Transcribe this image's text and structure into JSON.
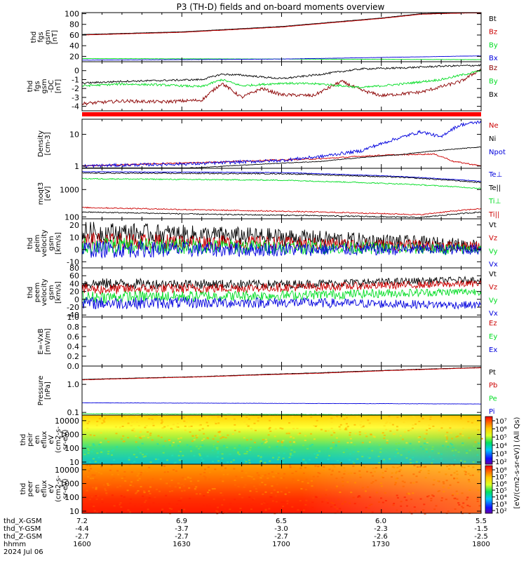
{
  "title": "P3 (TH-D) fields and on-board moments overview",
  "colors": {
    "black": "#000000",
    "red": "#cc0000",
    "green": "#00dd22",
    "blue": "#0000dd",
    "darkred": "#8b0000"
  },
  "chart_data": [
    {
      "type": "line",
      "ylabel": [
        "thd",
        "fgs",
        "gsm",
        "[nT]"
      ],
      "ytick_labels": [
        "100",
        "80",
        "60",
        "40",
        "20"
      ],
      "ytick_values": [
        100,
        80,
        60,
        40,
        20
      ],
      "ylim": [
        10,
        102
      ],
      "series": [
        {
          "name": "Bt",
          "color": "black",
          "x": [
            0,
            0.25,
            0.5,
            0.75,
            0.85,
            1
          ],
          "y": [
            61,
            66,
            76,
            92,
            100,
            103
          ]
        },
        {
          "name": "Bz",
          "color": "red",
          "x": [
            0,
            0.25,
            0.5,
            0.75,
            0.85,
            1
          ],
          "y": [
            60,
            65,
            75,
            91,
            99,
            102
          ]
        },
        {
          "name": "By",
          "color": "green",
          "x": [
            0,
            0.5,
            1
          ],
          "y": [
            16,
            15,
            14
          ]
        },
        {
          "name": "Bx",
          "color": "blue",
          "x": [
            0,
            0.5,
            1
          ],
          "y": [
            13,
            15,
            21
          ]
        }
      ]
    },
    {
      "type": "line",
      "ylabel": [
        "thd",
        "fgs",
        "gsm",
        "-DC",
        "[nT]"
      ],
      "ytick_labels": [
        "0",
        "-1",
        "-2",
        "-3",
        "-4"
      ],
      "ytick_values": [
        0,
        -1,
        -2,
        -3,
        -4
      ],
      "ylim": [
        -4.5,
        1.0
      ],
      "series": [
        {
          "name": "Bz",
          "color": "darkred",
          "x": [
            0,
            0.1,
            0.2,
            0.3,
            0.35,
            0.4,
            0.45,
            0.5,
            0.58,
            0.65,
            0.7,
            0.75,
            0.8,
            0.85,
            0.9,
            0.95,
            1
          ],
          "y": [
            -3.7,
            -3.4,
            -3.5,
            -3.3,
            -1.4,
            -3.0,
            -2.0,
            -2.7,
            -2.8,
            -1.2,
            -2.2,
            -2.8,
            -2.6,
            -2.4,
            -1.8,
            -1.2,
            0.2
          ]
        },
        {
          "name": "By",
          "color": "green",
          "x": [
            0,
            0.1,
            0.2,
            0.3,
            0.35,
            0.4,
            0.5,
            0.6,
            0.7,
            0.8,
            0.9,
            1
          ],
          "y": [
            -1.7,
            -1.5,
            -1.6,
            -1.8,
            -1.0,
            -1.7,
            -1.4,
            -1.5,
            -1.9,
            -1.5,
            -1.0,
            0.0
          ]
        },
        {
          "name": "Bx",
          "color": "black",
          "x": [
            0,
            0.1,
            0.2,
            0.3,
            0.35,
            0.4,
            0.5,
            0.6,
            0.7,
            0.8,
            0.9,
            1
          ],
          "y": [
            -1.4,
            -1.2,
            -1.1,
            -1.0,
            -0.4,
            -0.5,
            -0.9,
            -0.4,
            0.2,
            0.3,
            0.5,
            0.6
          ]
        }
      ]
    },
    {
      "type": "line",
      "ylabel": [
        "Density",
        "[cm-3]"
      ],
      "ytick_labels": [
        "10",
        "1"
      ],
      "ytick_values": [
        10,
        1
      ],
      "ylim": [
        0.85,
        30
      ],
      "log": true,
      "series": [
        {
          "name": "Ne",
          "color": "red",
          "x": [
            0,
            0.3,
            0.6,
            0.75,
            0.88,
            0.93,
            1
          ],
          "y": [
            1.0,
            1.3,
            1.7,
            2.2,
            2.4,
            1.4,
            1.0
          ]
        },
        {
          "name": "Ni",
          "color": "black",
          "x": [
            0,
            0.3,
            0.6,
            0.8,
            1
          ],
          "y": [
            0.7,
            0.9,
            1.4,
            2.3,
            4.0
          ]
        },
        {
          "name": "Npot",
          "color": "blue",
          "x": [
            0,
            0.3,
            0.5,
            0.6,
            0.7,
            0.75,
            0.8,
            0.85,
            0.9,
            0.95,
            1
          ],
          "y": [
            1.0,
            1.2,
            1.5,
            2.0,
            3.0,
            5.0,
            8.0,
            12.0,
            8.0,
            20.0,
            25.0
          ]
        }
      ]
    },
    {
      "type": "line",
      "ylabel": [
        "moqt3",
        "[eV]"
      ],
      "ytick_labels": [
        "1000",
        "100"
      ],
      "ytick_values": [
        1000,
        100
      ],
      "ylim": [
        85,
        6000
      ],
      "log": true,
      "series": [
        {
          "name": "Te⊥",
          "color": "blue",
          "x": [
            0,
            0.5,
            0.8,
            1
          ],
          "y": [
            4500,
            4200,
            3000,
            2000
          ]
        },
        {
          "name": "Te||",
          "color": "black",
          "x": [
            0,
            0.5,
            0.8,
            1
          ],
          "y": [
            4000,
            3800,
            2800,
            1800
          ]
        },
        {
          "name": "Ti⊥",
          "color": "green",
          "x": [
            0,
            0.5,
            0.8,
            1
          ],
          "y": [
            2500,
            2200,
            1600,
            1100
          ]
        },
        {
          "name": "Ti||",
          "color": "red",
          "x": [
            0,
            0.3,
            0.6,
            0.85,
            1
          ],
          "y": [
            220,
            180,
            150,
            120,
            200
          ]
        },
        {
          "name": "",
          "color": "black",
          "x": [
            0,
            0.3,
            0.6,
            0.85,
            1
          ],
          "y": [
            150,
            125,
            110,
            95,
            150
          ]
        }
      ]
    },
    {
      "type": "line",
      "ylabel": [
        "thd",
        "peim",
        "velocity",
        "gsm",
        "[km/s]"
      ],
      "ytick_labels": [
        "20",
        "10",
        "0",
        "-10"
      ],
      "ytick_values": [
        20,
        10,
        0,
        -10
      ],
      "ylim": [
        -15,
        25
      ],
      "series": [
        {
          "name": "Vt",
          "color": "black",
          "x": [
            0,
            0.5,
            1
          ],
          "y": [
            14,
            10,
            3
          ]
        },
        {
          "name": "Vz",
          "color": "red",
          "x": [
            0,
            0.5,
            1
          ],
          "y": [
            7,
            5,
            2
          ]
        },
        {
          "name": "Vy",
          "color": "green",
          "x": [
            0,
            0.5,
            1
          ],
          "y": [
            3,
            2,
            0
          ]
        },
        {
          "name": "Vx",
          "color": "blue",
          "x": [
            0,
            0.5,
            1
          ],
          "y": [
            0,
            0,
            0
          ]
        }
      ]
    },
    {
      "type": "line",
      "ylabel": [
        "thd",
        "peem",
        "velocity",
        "gsm",
        "[km/s]"
      ],
      "ytick_labels": [
        "80",
        "60",
        "40",
        "20",
        "0",
        "-20",
        "-40"
      ],
      "ytick_values": [
        80,
        60,
        40,
        20,
        0,
        -20,
        -40
      ],
      "ylim": [
        -45,
        80
      ],
      "series": [
        {
          "name": "Vt",
          "color": "black",
          "x": [
            0,
            0.5,
            1
          ],
          "y": [
            40,
            38,
            50
          ]
        },
        {
          "name": "Vz",
          "color": "red",
          "x": [
            0,
            0.5,
            1
          ],
          "y": [
            25,
            30,
            40
          ]
        },
        {
          "name": "Vy",
          "color": "green",
          "x": [
            0,
            0.5,
            1
          ],
          "y": [
            5,
            10,
            20
          ]
        },
        {
          "name": "Vx",
          "color": "blue",
          "x": [
            0,
            0.5,
            1
          ],
          "y": [
            -10,
            -8,
            -15
          ]
        }
      ]
    },
    {
      "type": "line",
      "ylabel": [
        "E=-VxB",
        "[mV/m]"
      ],
      "ytick_labels": [
        "1.0",
        "0.8",
        "0.6",
        "0.4",
        "0.2",
        "0.0"
      ],
      "ytick_values": [
        1.0,
        0.8,
        0.6,
        0.4,
        0.2,
        0.0
      ],
      "ylim": [
        0,
        1
      ],
      "series": [
        {
          "name": "Ez",
          "color": "red",
          "x": [],
          "y": []
        },
        {
          "name": "Ey",
          "color": "green",
          "x": [],
          "y": []
        },
        {
          "name": "Ex",
          "color": "blue",
          "x": [],
          "y": []
        }
      ]
    },
    {
      "type": "line",
      "ylabel": [
        "Pressure",
        "[nPa]"
      ],
      "ytick_labels": [
        "1.0",
        "0.1"
      ],
      "ytick_values": [
        1.0,
        0.1
      ],
      "ylim": [
        0.08,
        4.5
      ],
      "log": true,
      "series": [
        {
          "name": "Pt",
          "color": "black",
          "x": [
            0,
            0.3,
            0.6,
            1
          ],
          "y": [
            1.5,
            1.9,
            2.6,
            4.0
          ]
        },
        {
          "name": "Pb",
          "color": "red",
          "x": [
            0,
            0.3,
            0.6,
            1
          ],
          "y": [
            1.45,
            1.85,
            2.5,
            3.9
          ]
        },
        {
          "name": "Pe",
          "color": "green",
          "x": [
            0,
            1
          ],
          "y": [
            0.09,
            0.08
          ]
        },
        {
          "name": "Pi",
          "color": "blue",
          "x": [
            0,
            1
          ],
          "y": [
            0.22,
            0.2
          ]
        }
      ]
    },
    {
      "type": "heatmap",
      "ylabel": [
        "thd",
        "peir",
        "en",
        "eflux",
        "eV",
        "(cm2-s-",
        "sr-eV)"
      ],
      "ytick_labels": [
        "10000",
        "1000",
        "100",
        "10"
      ],
      "ytick_values": [
        10000,
        1000,
        100,
        10
      ],
      "ylim": [
        7,
        25000
      ],
      "log": true
    },
    {
      "type": "heatmap",
      "ylabel": [
        "thd",
        "peer",
        "en",
        "eflux",
        "eV",
        "(cm2-s-",
        "sr-eV)"
      ],
      "ytick_labels": [
        "10000",
        "1000",
        "100",
        "10"
      ],
      "ytick_values": [
        10000,
        1000,
        100,
        10
      ],
      "ylim": [
        7,
        25000
      ],
      "log": true
    }
  ],
  "colorbar": {
    "label": "[eV/(cm2-s-sr-eV)] (All Qs)",
    "top_ticks": [
      "10⁷",
      "10⁶",
      "10⁵",
      "10⁴",
      "10³",
      "10²"
    ],
    "bottom_ticks": [
      "10⁸",
      "10⁷",
      "10⁶",
      "10⁵",
      "10⁴",
      "10³",
      "10²"
    ],
    "overlay_text": "[eV/(cm2-s-sr-eV)]"
  },
  "xaxis": {
    "rows": [
      {
        "label": "thd_X-GSM",
        "values": [
          "7.2",
          "6.9",
          "6.5",
          "6.0",
          "5.5"
        ]
      },
      {
        "label": "thd_Y-GSM",
        "values": [
          "-4.4",
          "-3.7",
          "-3.0",
          "-2.3",
          "-1.5"
        ]
      },
      {
        "label": "thd_Z-GSM",
        "values": [
          "-2.7",
          "-2.7",
          "-2.7",
          "-2.6",
          "-2.5"
        ]
      },
      {
        "label": "hhmm",
        "values": [
          "1600",
          "1630",
          "1700",
          "1730",
          "1800"
        ]
      }
    ],
    "date": "2024 Jul 06"
  }
}
